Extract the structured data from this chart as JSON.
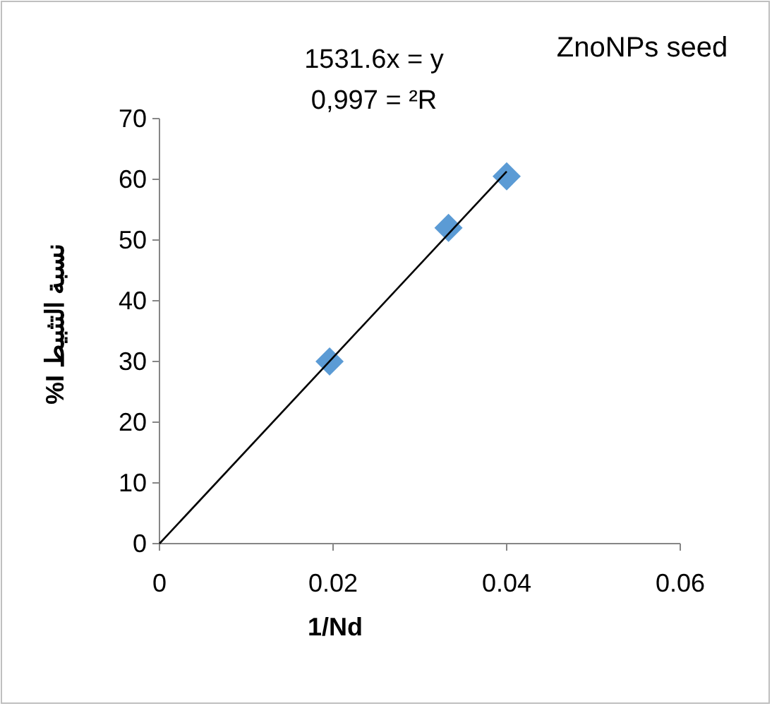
{
  "chart_data": {
    "type": "scatter",
    "title": "ZnoNPs seed",
    "xlabel": "1/Nd",
    "ylabel": "نسبة التثبيط I%",
    "annotations": [
      "1531.6x = y",
      "0,997 = ²R"
    ],
    "series": [
      {
        "color": "#5b9bd5",
        "marker": "diamond",
        "x": [
          0.0196,
          0.0333,
          0.04
        ],
        "values": [
          30,
          52,
          60.5
        ]
      },
      {
        "type": "line",
        "color": "#000000",
        "marker": "none",
        "x": [
          0,
          0.04
        ],
        "values": [
          0,
          61.3
        ]
      }
    ],
    "xlim": [
      0,
      0.06
    ],
    "xticks": [
      0,
      0.02,
      0.04,
      0.06
    ],
    "ylim": [
      0,
      70
    ],
    "yticks": [
      0,
      10,
      20,
      30,
      40,
      50,
      60,
      70
    ],
    "grid": false
  }
}
